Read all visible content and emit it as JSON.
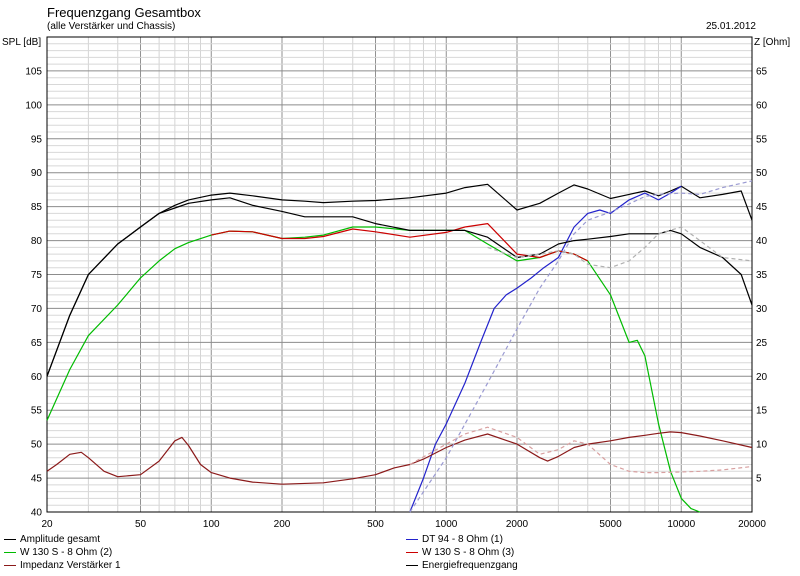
{
  "header": {
    "title": "Frequenzgang Gesamtbox",
    "subtitle": "(alle Verstärker und Chassis)",
    "date": "25.01.2012"
  },
  "chart_data": {
    "type": "line",
    "xscale": "log",
    "xlim": [
      20,
      20000
    ],
    "ylim": [
      40,
      110
    ],
    "y2lim": [
      0,
      70
    ],
    "ylabel": "SPL [dB]",
    "y2label": "Z [Ohm]",
    "grid": true,
    "legend_position": "bottom",
    "x_ticks": [
      "20",
      "50",
      "100",
      "200",
      "500",
      "1000",
      "2000",
      "5000",
      "10000",
      "20000"
    ],
    "y_ticks": [
      "40",
      "45",
      "50",
      "55",
      "60",
      "65",
      "70",
      "75",
      "80",
      "85",
      "90",
      "95",
      "100",
      "105"
    ],
    "y2_ticks": [
      "5",
      "10",
      "15",
      "20",
      "25",
      "30",
      "35",
      "40",
      "45",
      "50",
      "55",
      "60",
      "65"
    ],
    "legend": [
      {
        "label": "Amplitude gesamt",
        "color": "#000000"
      },
      {
        "label": "DT 94 - 8 Ohm (1)",
        "color": "#2222cc"
      },
      {
        "label": "W 130 S - 8 Ohm (2)",
        "color": "#00bb00"
      },
      {
        "label": "W 130 S - 8 Ohm (3)",
        "color": "#cc0000"
      },
      {
        "label": "Impedanz Verstärker 1",
        "color": "#8b1a1a"
      },
      {
        "label": "Energiefrequenzgang",
        "color": "#000000"
      }
    ],
    "series": [
      {
        "name": "Amplitude gesamt",
        "axis": "y",
        "color": "#000000",
        "x": [
          20,
          25,
          30,
          40,
          50,
          60,
          70,
          80,
          100,
          120,
          150,
          200,
          250,
          300,
          400,
          500,
          700,
          1000,
          1200,
          1500,
          2000,
          2500,
          3000,
          3500,
          4000,
          5000,
          6000,
          7000,
          8000,
          9000,
          10000,
          12000,
          15000,
          18000,
          20000
        ],
        "y": [
          60,
          69,
          75,
          79.5,
          82,
          84,
          85.2,
          86,
          86.7,
          87,
          86.6,
          86,
          85.8,
          85.6,
          85.8,
          85.9,
          86.3,
          87,
          87.8,
          88.3,
          84.5,
          85.5,
          87,
          88.2,
          87.6,
          86.2,
          86.8,
          87.3,
          86.6,
          87.3,
          88,
          86.3,
          86.8,
          87.3,
          83
        ]
      },
      {
        "name": "DT 94 - 8 Ohm (1)",
        "axis": "y",
        "color": "#2222cc",
        "x": [
          700,
          800,
          900,
          1000,
          1200,
          1400,
          1600,
          1800,
          2000,
          2300,
          2600,
          3000,
          3500,
          4000,
          4500,
          5000,
          6000,
          7000,
          8000,
          9000,
          10000
        ],
        "y": [
          40,
          45,
          50,
          53,
          59,
          65,
          70,
          72,
          73,
          74.5,
          76,
          77.5,
          82,
          84,
          84.5,
          84,
          86,
          87,
          86,
          87,
          88
        ]
      },
      {
        "name": "W 130 S - 8 Ohm (2)",
        "axis": "y",
        "color": "#00bb00",
        "x": [
          20,
          25,
          30,
          40,
          50,
          60,
          70,
          80,
          100,
          120,
          150,
          200,
          250,
          300,
          400,
          500,
          700,
          1000,
          1200,
          1500,
          2000,
          2500,
          3000,
          3500,
          4000,
          5000,
          6000,
          6500,
          7000,
          8000,
          9000,
          10000,
          11000,
          12000
        ],
        "y": [
          53.5,
          61,
          66,
          70.5,
          74.5,
          77,
          78.8,
          79.7,
          80.8,
          81.4,
          81.3,
          80.3,
          80.5,
          80.8,
          82,
          82,
          81.5,
          81.5,
          81.5,
          79.5,
          77,
          77.5,
          78.5,
          78,
          77,
          72,
          65,
          65.3,
          63,
          53,
          46,
          42,
          40.5,
          40
        ]
      },
      {
        "name": "W 130 S - 8 Ohm (3)",
        "axis": "y",
        "color": "#cc0000",
        "x": [
          100,
          120,
          150,
          200,
          250,
          300,
          400,
          500,
          700,
          1000,
          1200,
          1500,
          2000,
          2500,
          3000,
          3500,
          4000
        ],
        "y": [
          80.8,
          81.4,
          81.3,
          80.3,
          80.3,
          80.6,
          81.7,
          81.3,
          80.5,
          81.2,
          82,
          82.5,
          78,
          77.5,
          78.5,
          78,
          77
        ]
      },
      {
        "name": "Impedanz Verstärker 1",
        "axis": "y2",
        "color": "#8b1a1a",
        "x": [
          20,
          22,
          25,
          28,
          30,
          35,
          40,
          50,
          60,
          70,
          75,
          80,
          90,
          100,
          120,
          150,
          200,
          300,
          400,
          500,
          600,
          700,
          800,
          1000,
          1200,
          1500,
          2000,
          2500,
          2700,
          3000,
          3500,
          4000,
          5000,
          6000,
          7000,
          8000,
          9000,
          10000,
          12000,
          15000,
          20000
        ],
        "y": [
          6,
          7,
          8.5,
          8.8,
          8,
          6,
          5.2,
          5.5,
          7.5,
          10.5,
          11,
          9.8,
          7,
          5.8,
          5,
          4.4,
          4.1,
          4.3,
          4.9,
          5.5,
          6.5,
          7,
          7.8,
          9.5,
          10.6,
          11.5,
          10,
          8,
          7.5,
          8.2,
          9.5,
          10,
          10.5,
          11,
          11.3,
          11.6,
          11.8,
          11.7,
          11.2,
          10.5,
          9.5
        ]
      },
      {
        "name": "Energiefrequenzgang",
        "axis": "y",
        "color": "#000000",
        "x": [
          20,
          25,
          30,
          40,
          50,
          60,
          70,
          80,
          100,
          120,
          150,
          200,
          250,
          300,
          400,
          500,
          700,
          1000,
          1200,
          1500,
          2000,
          2500,
          3000,
          3500,
          4000,
          5000,
          6000,
          7000,
          8000,
          9000,
          10000,
          12000,
          15000,
          18000,
          20000
        ],
        "y": [
          60,
          69,
          75,
          79.5,
          82,
          84,
          84.8,
          85.5,
          86,
          86.3,
          85.2,
          84.3,
          83.5,
          83.5,
          83.5,
          82.5,
          81.5,
          81.5,
          81.5,
          80.5,
          77.5,
          78,
          79.5,
          80,
          80.2,
          80.6,
          81,
          81,
          81,
          81.5,
          81,
          79,
          77.5,
          75,
          70.5
        ]
      },
      {
        "name": "",
        "axis": "y",
        "color": "#9a9ad2",
        "dashed": true,
        "x": [
          700,
          1000,
          1500,
          2000,
          2500,
          3000,
          3500,
          4000,
          5000,
          6000,
          7000,
          8000,
          10000,
          12000,
          15000,
          20000
        ],
        "y": [
          40,
          48,
          59,
          67,
          73,
          77,
          81,
          83,
          84.2,
          85.4,
          86.5,
          86.8,
          87,
          86.8,
          87.8,
          88.8
        ]
      },
      {
        "name": "",
        "axis": "y",
        "color": "#b0b0b0",
        "dashed": true,
        "x": [
          1500,
          2000,
          2500,
          3000,
          3500,
          4000,
          5000,
          6000,
          7000,
          8000,
          10000,
          12000,
          15000,
          20000
        ],
        "y": [
          79,
          77.5,
          78,
          78.5,
          78,
          76.5,
          76,
          77,
          79,
          81,
          82,
          80,
          77.5,
          77
        ]
      },
      {
        "name": "",
        "axis": "y2",
        "color": "#d8a0a0",
        "dashed": true,
        "x": [
          700,
          1000,
          1200,
          1500,
          2000,
          2500,
          3000,
          3500,
          4000,
          5000,
          6000,
          7000,
          8000,
          10000,
          12000,
          15000,
          20000
        ],
        "y": [
          7,
          10,
          11.5,
          12.5,
          11,
          8.5,
          9.2,
          10.5,
          10,
          7,
          6,
          5.8,
          5.8,
          5.9,
          6,
          6.2,
          6.7
        ]
      }
    ]
  }
}
